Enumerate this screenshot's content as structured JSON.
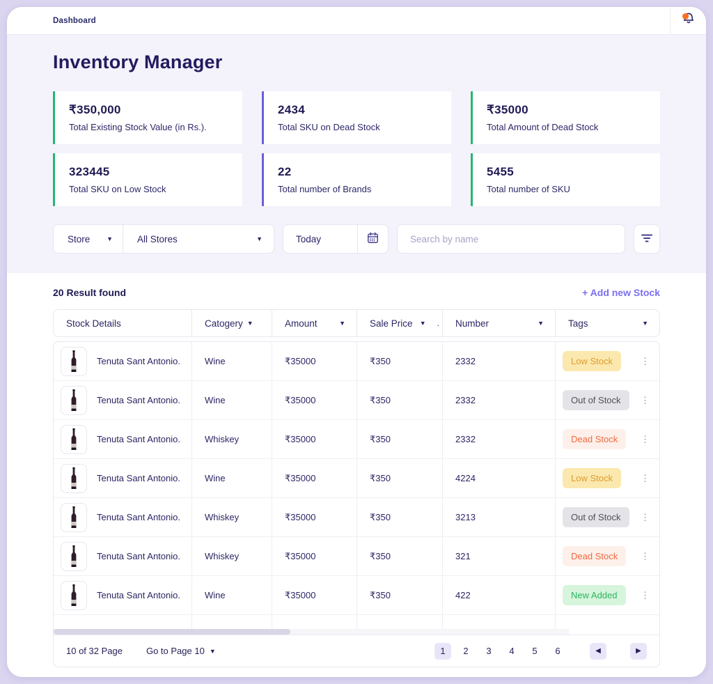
{
  "topbar": {
    "breadcrumb": "Dashboard",
    "notification_dot_color": "#f97125"
  },
  "page": {
    "title": "Inventory Manager"
  },
  "stats": [
    {
      "value": "₹350,000",
      "label": "Total Existing Stock Value (in Rs.).",
      "accent": "#24b770"
    },
    {
      "value": "2434",
      "label": "Total SKU on Dead Stock",
      "accent": "#6a5fd8"
    },
    {
      "value": "₹35000",
      "label": "Total Amount of Dead Stock",
      "accent": "#24b770"
    },
    {
      "value": "323445",
      "label": "Total SKU on Low Stock",
      "accent": "#24b770"
    },
    {
      "value": "22",
      "label": "Total number of Brands",
      "accent": "#6a5fd8"
    },
    {
      "value": "5455",
      "label": "Total number of SKU",
      "accent": "#24b770"
    }
  ],
  "filters": {
    "store_label": "Store",
    "store_value": "All Stores",
    "date_value": "Today",
    "search_placeholder": "Search by name",
    "icons": [
      "chevron-down-icon",
      "calendar-icon",
      "filter-icon"
    ]
  },
  "results": {
    "count_text": "20 Result found",
    "add_link": "+ Add new Stock",
    "link_color": "#7a6ff0"
  },
  "table": {
    "columns": [
      {
        "label": "Stock Details",
        "sortable": false
      },
      {
        "label": "Catogery",
        "sortable": true,
        "caret_near": true
      },
      {
        "label": "Amount",
        "sortable": true
      },
      {
        "label": "Sale Price",
        "sortable": true,
        "suffix": "."
      },
      {
        "label": "Number",
        "sortable": true
      },
      {
        "label": "Tags",
        "sortable": true
      }
    ],
    "rows": [
      {
        "name": "Tenuta Sant Antonio.",
        "category": "Wine",
        "amount": "₹35000",
        "sale_price": "₹350",
        "number": "2332",
        "tag": "Low Stock"
      },
      {
        "name": "Tenuta Sant Antonio.",
        "category": "Wine",
        "amount": "₹35000",
        "sale_price": "₹350",
        "number": "2332",
        "tag": "Out of Stock"
      },
      {
        "name": "Tenuta Sant Antonio.",
        "category": "Whiskey",
        "amount": "₹35000",
        "sale_price": "₹350",
        "number": "2332",
        "tag": "Dead Stock"
      },
      {
        "name": "Tenuta Sant Antonio.",
        "category": "Wine",
        "amount": "₹35000",
        "sale_price": "₹350",
        "number": "4224",
        "tag": "Low Stock"
      },
      {
        "name": "Tenuta Sant Antonio.",
        "category": "Whiskey",
        "amount": "₹35000",
        "sale_price": "₹350",
        "number": "3213",
        "tag": "Out of Stock"
      },
      {
        "name": "Tenuta Sant Antonio.",
        "category": "Whiskey",
        "amount": "₹35000",
        "sale_price": "₹350",
        "number": "321",
        "tag": "Dead Stock"
      },
      {
        "name": "Tenuta Sant Antonio.",
        "category": "Wine",
        "amount": "₹35000",
        "sale_price": "₹350",
        "number": "422",
        "tag": "New Added"
      }
    ],
    "tag_styles": {
      "Low Stock": {
        "bg": "#fbe8ae",
        "color": "#df9c2e"
      },
      "Out of Stock": {
        "bg": "#e4e3e7",
        "color": "#514f5a"
      },
      "Dead Stock": {
        "bg": "#fdf0ea",
        "color": "#f26a40"
      },
      "New Added": {
        "bg": "#d6f5dc",
        "color": "#2cb45f"
      }
    }
  },
  "pagination": {
    "status": "10 of 32 Page",
    "goto_label": "Go to Page 10",
    "pages": [
      "1",
      "2",
      "3",
      "4",
      "5",
      "6"
    ],
    "active_page": "1"
  }
}
